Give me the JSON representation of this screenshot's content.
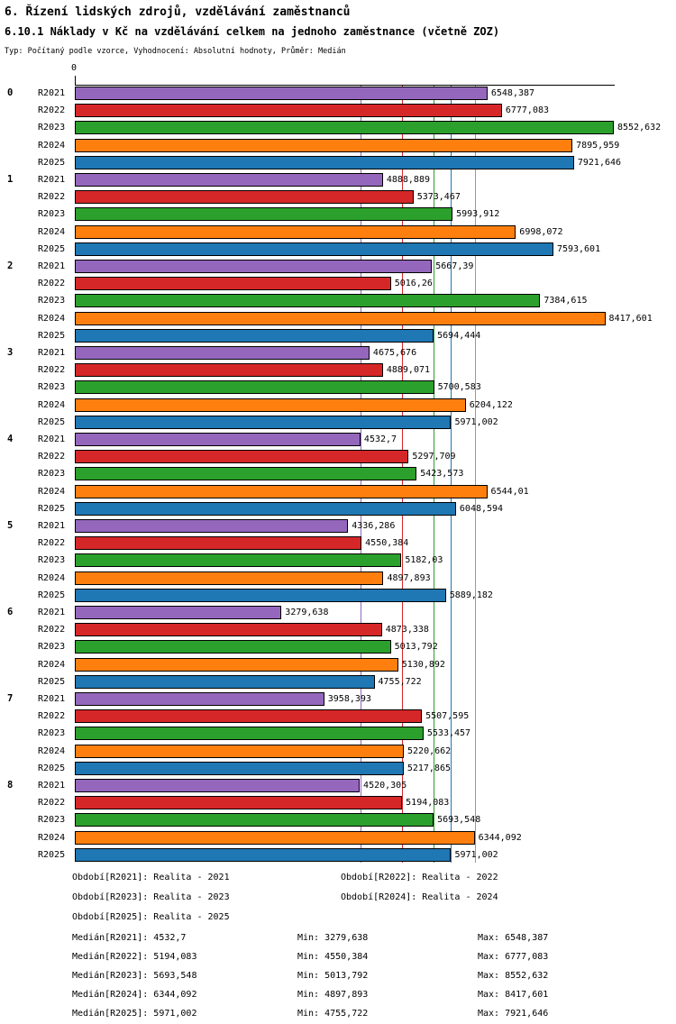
{
  "title": "6. Řízení lidských zdrojů, vzdělávání zaměstnanců",
  "subtitle": "6.10.1 Náklady v Kč na vzdělávání celkem na jednoho zaměstnance (včetně ZOZ)",
  "meta": "Typ: Počítaný podle vzorce, Vyhodnocení: Absolutní hodnoty, Průměr: Medián",
  "chart_data": {
    "type": "bar",
    "orientation": "horizontal",
    "value_axis": {
      "zero_label": "0",
      "min": 0,
      "max": 8552.632,
      "position": "top"
    },
    "series_order": [
      "R2021",
      "R2022",
      "R2023",
      "R2024",
      "R2025"
    ],
    "series_colors": {
      "R2021": "#9467bd",
      "R2022": "#d62728",
      "R2023": "#2ca02c",
      "R2024": "#ff7f0e",
      "R2025": "#1f77b4"
    },
    "medians": {
      "R2021": 4532.7,
      "R2022": 5194.083,
      "R2023": 5693.548,
      "R2024": 6344.092,
      "R2025": 5971.002
    },
    "groups": [
      {
        "label": "0",
        "values": [
          6548.387,
          6777.083,
          8552.632,
          7895.959,
          7921.646
        ],
        "labels": [
          "6548,387",
          "6777,083",
          "8552,632",
          "7895,959",
          "7921,646"
        ]
      },
      {
        "label": "1",
        "values": [
          4888.889,
          5373.467,
          5993.912,
          6998.072,
          7593.601
        ],
        "labels": [
          "4888,889",
          "5373,467",
          "5993,912",
          "6998,072",
          "7593,601"
        ]
      },
      {
        "label": "2",
        "values": [
          5667.39,
          5016.26,
          7384.615,
          8417.601,
          5694.444
        ],
        "labels": [
          "5667,39",
          "5016,26",
          "7384,615",
          "8417,601",
          "5694,444"
        ]
      },
      {
        "label": "3",
        "values": [
          4675.676,
          4889.071,
          5700.583,
          6204.122,
          5971.002
        ],
        "labels": [
          "4675,676",
          "4889,071",
          "5700,583",
          "6204,122",
          "5971,002"
        ]
      },
      {
        "label": "4",
        "values": [
          4532.7,
          5297.709,
          5423.573,
          6544.01,
          6048.594
        ],
        "labels": [
          "4532,7",
          "5297,709",
          "5423,573",
          "6544,01",
          "6048,594"
        ]
      },
      {
        "label": "5",
        "values": [
          4336.286,
          4550.384,
          5182.03,
          4897.893,
          5889.182
        ],
        "labels": [
          "4336,286",
          "4550,384",
          "5182,03",
          "4897,893",
          "5889,182"
        ]
      },
      {
        "label": "6",
        "values": [
          3279.638,
          4873.338,
          5013.792,
          5130.892,
          4755.722
        ],
        "labels": [
          "3279,638",
          "4873,338",
          "5013,792",
          "5130,892",
          "4755,722"
        ]
      },
      {
        "label": "7",
        "values": [
          3958.393,
          5507.595,
          5533.457,
          5220.662,
          5217.865
        ],
        "labels": [
          "3958,393",
          "5507,595",
          "5533,457",
          "5220,662",
          "5217,865"
        ]
      },
      {
        "label": "8",
        "values": [
          4520.305,
          5194.083,
          5693.548,
          6344.092,
          5971.002
        ],
        "labels": [
          "4520,305",
          "5194,083",
          "5693,548",
          "6344,092",
          "5971,002"
        ]
      }
    ]
  },
  "legend": {
    "items": [
      "Období[R2021]: Realita - 2021",
      "Období[R2022]: Realita - 2022",
      "Období[R2023]: Realita - 2023",
      "Období[R2024]: Realita - 2024",
      "Období[R2025]: Realita - 2025"
    ]
  },
  "stats": {
    "rows": [
      {
        "median": "Medián[R2021]: 4532,7",
        "min": "Min: 3279,638",
        "max": "Max: 6548,387"
      },
      {
        "median": "Medián[R2022]: 5194,083",
        "min": "Min: 4550,384",
        "max": "Max: 6777,083"
      },
      {
        "median": "Medián[R2023]: 5693,548",
        "min": "Min: 5013,792",
        "max": "Max: 8552,632"
      },
      {
        "median": "Medián[R2024]: 6344,092",
        "min": "Min: 4897,893",
        "max": "Max: 8417,601"
      },
      {
        "median": "Medián[R2025]: 5971,002",
        "min": "Min: 4755,722",
        "max": "Max: 7921,646"
      }
    ]
  }
}
